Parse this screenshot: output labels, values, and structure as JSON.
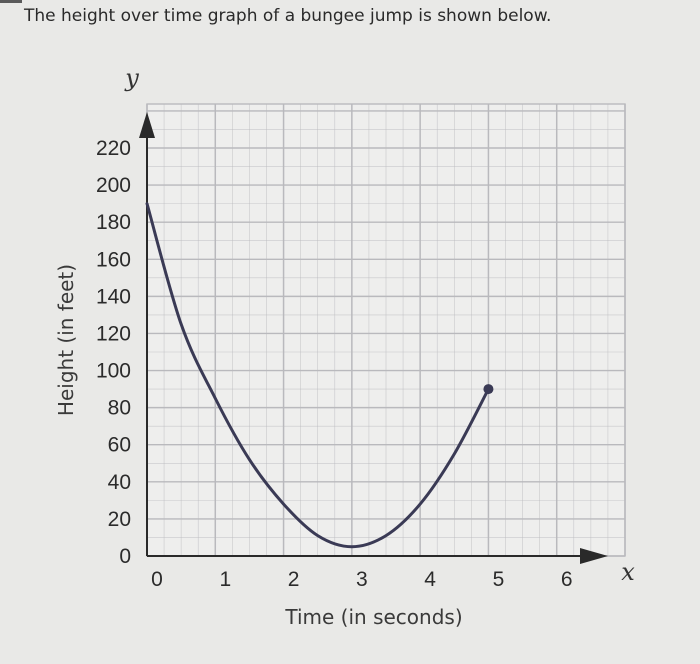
{
  "question": "The height over time graph of a bungee jump is shown below.",
  "chart_data": {
    "type": "line",
    "title": "",
    "xlabel": "Time (in seconds)",
    "ylabel": "Height (in feet)",
    "x_axis_var": "x",
    "y_axis_var": "y",
    "xlim": [
      0,
      7
    ],
    "ylim": [
      0,
      220
    ],
    "grid": true,
    "x_ticks": [
      "0",
      "1",
      "2",
      "3",
      "4",
      "5",
      "6"
    ],
    "y_ticks": [
      "0",
      "20",
      "40",
      "60",
      "80",
      "100",
      "120",
      "140",
      "160",
      "180",
      "200",
      "220"
    ],
    "series": [
      {
        "x": [
          0,
          0.5,
          1,
          1.5,
          2,
          2.5,
          3,
          3.5,
          4,
          4.5,
          5
        ],
        "y": [
          190,
          125,
          85,
          52,
          28,
          11,
          5,
          11,
          28,
          55,
          90
        ]
      }
    ],
    "endpoint": {
      "x": 5,
      "y": 90
    },
    "colors": {
      "curve": "#3a3a55",
      "grid": "#b9b9bd",
      "background": "#e9e9e7"
    }
  }
}
